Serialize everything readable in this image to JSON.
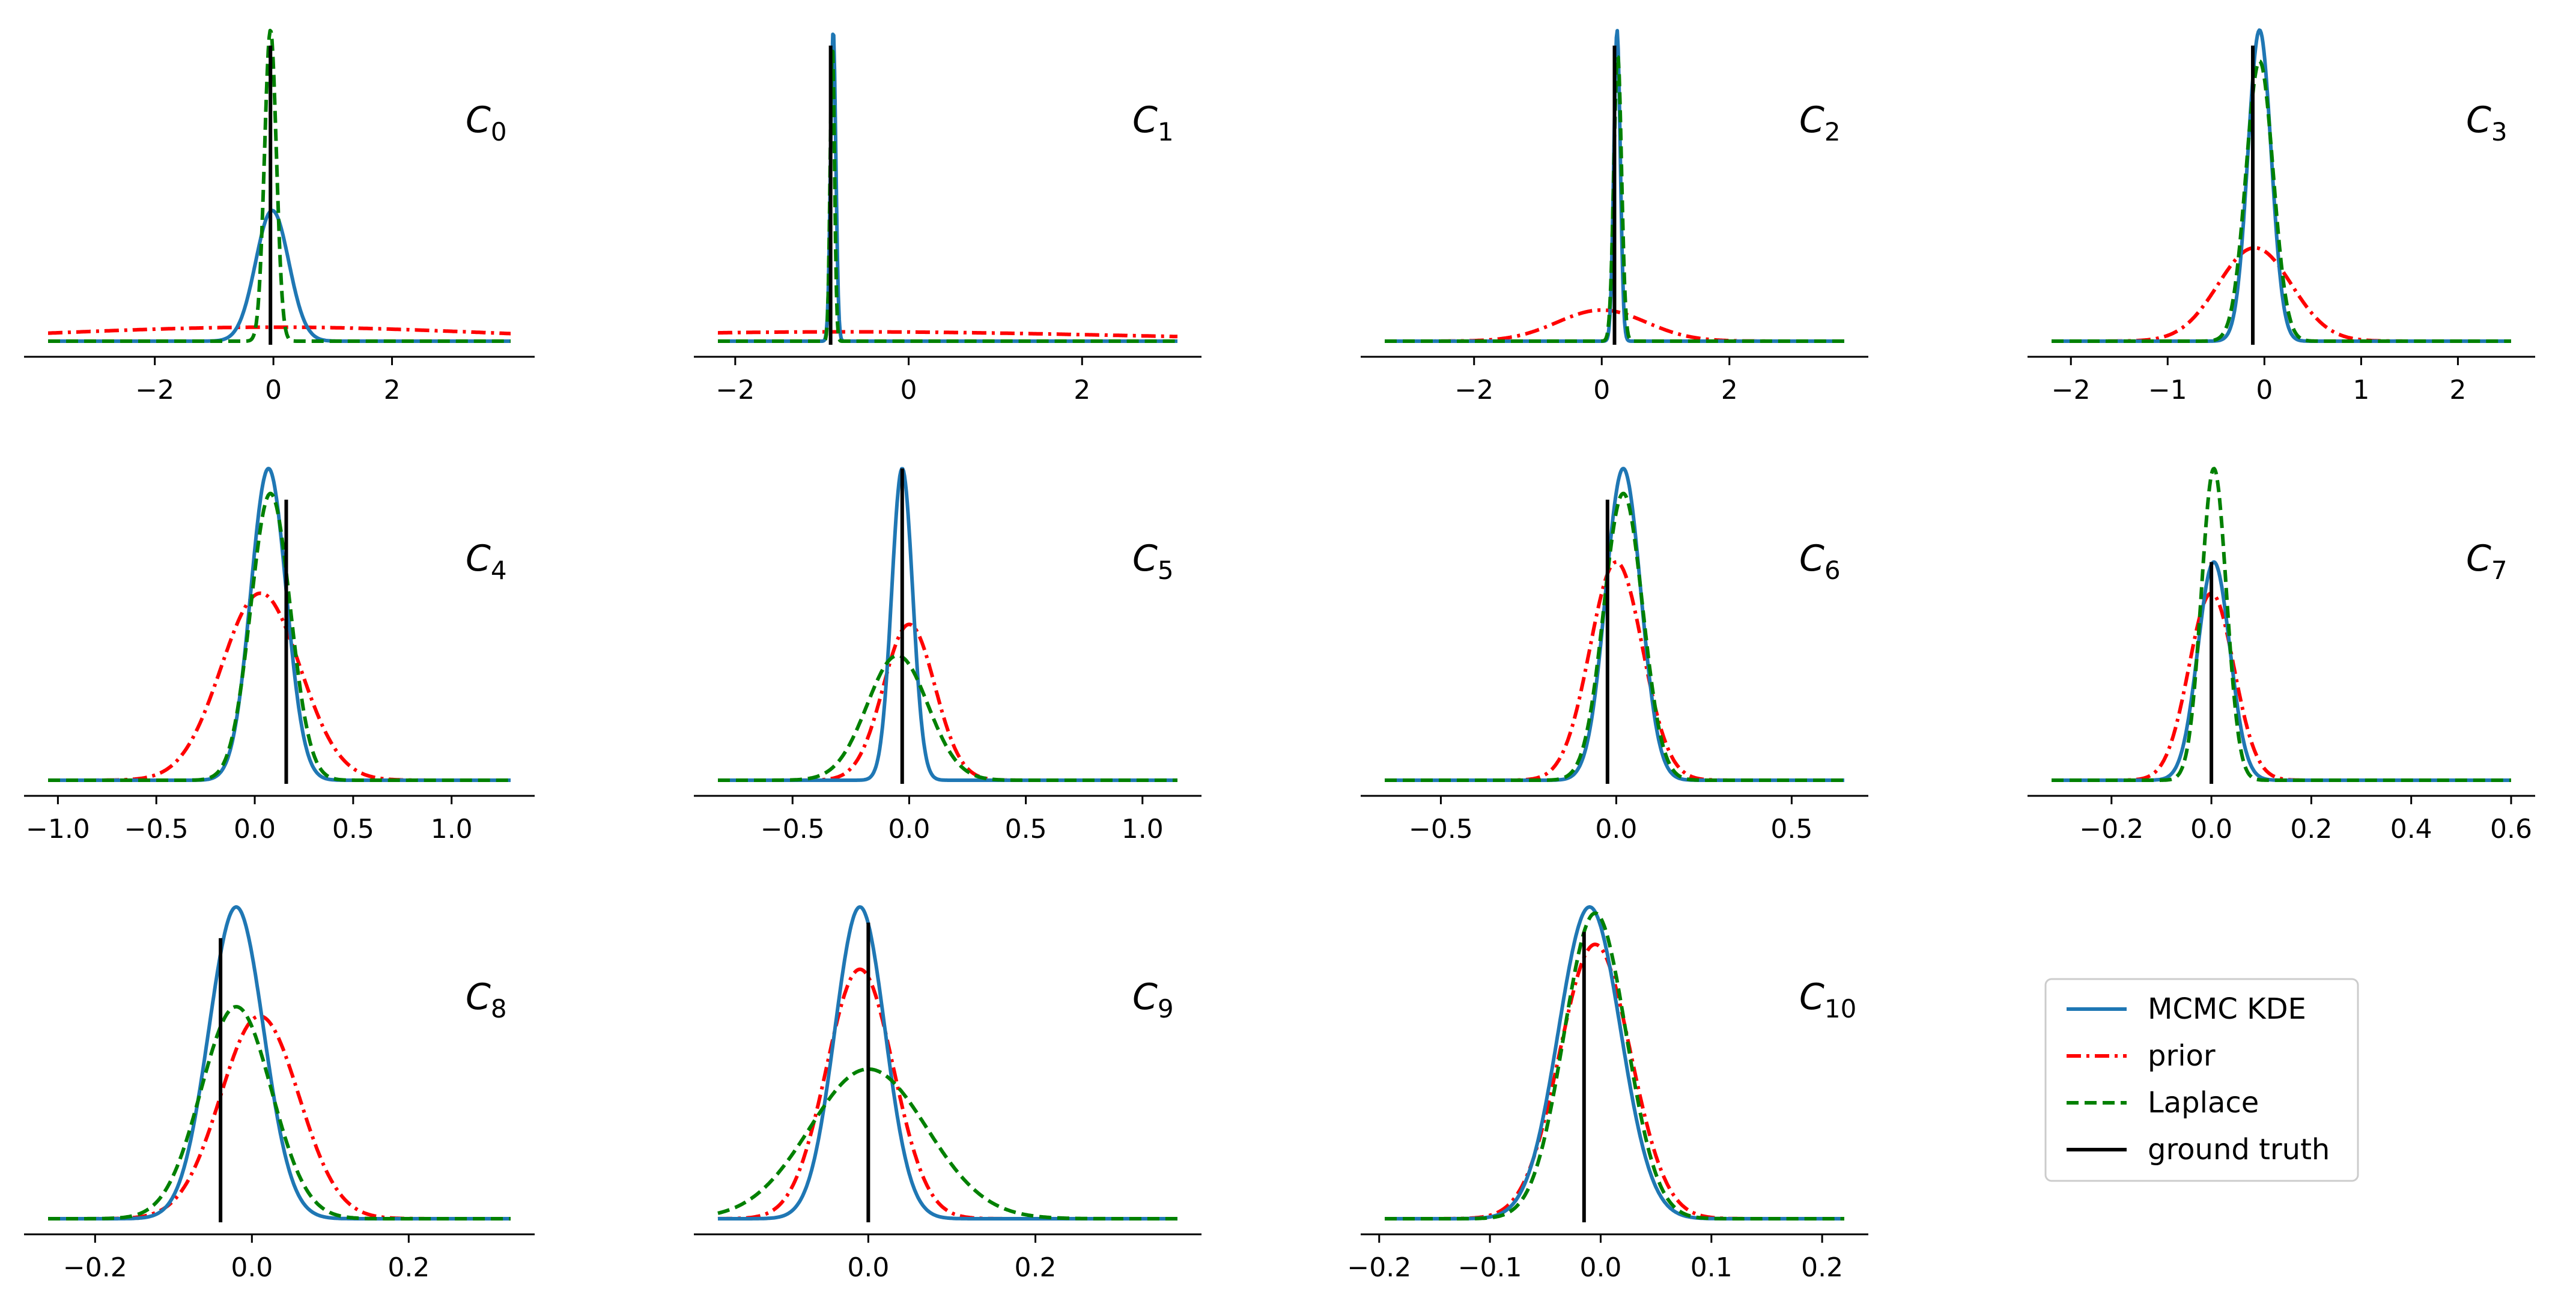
{
  "colors": {
    "mcmc": "#1f77b4",
    "prior": "#ff0000",
    "laplace": "#008000",
    "truth": "#000000",
    "axis": "#000000",
    "legend_border": "#cccccc"
  },
  "legend": {
    "position": "bottom-right",
    "entries": [
      {
        "key": "mcmc",
        "label": "MCMC KDE",
        "style": "solid"
      },
      {
        "key": "prior",
        "label": "prior",
        "style": "dashdot"
      },
      {
        "key": "laplace",
        "label": "Laplace",
        "style": "dashed"
      },
      {
        "key": "truth",
        "label": "ground truth",
        "style": "solid"
      }
    ]
  },
  "chart_data": [
    {
      "type": "line",
      "label_main": "C",
      "label_sub": "0",
      "xlim": [
        -3.8,
        4.0
      ],
      "ticks": [
        -2,
        0,
        2
      ],
      "tick_labels": [
        "−2",
        "0",
        "2"
      ],
      "truth": -0.05,
      "truth_height": 0.95,
      "series": [
        {
          "key": "mcmc",
          "mu": -0.02,
          "sigma": 0.28,
          "peak": 0.42
        },
        {
          "key": "prior",
          "mu": 0.0,
          "sigma": 3.6,
          "peak": 0.045
        },
        {
          "key": "laplace",
          "mu": -0.05,
          "sigma": 0.1,
          "peak": 1.0
        }
      ]
    },
    {
      "type": "line",
      "label_main": "C",
      "label_sub": "1",
      "xlim": [
        -2.2,
        3.1
      ],
      "ticks": [
        -2,
        0,
        2
      ],
      "tick_labels": [
        "−2",
        "0",
        "2"
      ],
      "truth": -0.9,
      "truth_height": 0.95,
      "series": [
        {
          "key": "mcmc",
          "mu": -0.87,
          "sigma": 0.03,
          "peak": 1.0
        },
        {
          "key": "prior",
          "mu": -0.7,
          "sigma": 3.2,
          "peak": 0.03
        },
        {
          "key": "laplace",
          "mu": -0.88,
          "sigma": 0.025,
          "peak": 0.95
        }
      ]
    },
    {
      "type": "line",
      "label_main": "C",
      "label_sub": "2",
      "xlim": [
        -3.4,
        3.8
      ],
      "ticks": [
        -2,
        0,
        2
      ],
      "tick_labels": [
        "−2",
        "0",
        "2"
      ],
      "truth": 0.2,
      "truth_height": 0.95,
      "series": [
        {
          "key": "mcmc",
          "mu": 0.24,
          "sigma": 0.05,
          "peak": 1.0
        },
        {
          "key": "prior",
          "mu": 0.0,
          "sigma": 0.7,
          "peak": 0.1
        },
        {
          "key": "laplace",
          "mu": 0.25,
          "sigma": 0.06,
          "peak": 0.92
        }
      ]
    },
    {
      "type": "line",
      "label_main": "C",
      "label_sub": "3",
      "xlim": [
        -2.2,
        2.55
      ],
      "ticks": [
        -2,
        -1,
        0,
        1,
        2
      ],
      "tick_labels": [
        "−2",
        "−1",
        "0",
        "1",
        "2"
      ],
      "truth": -0.12,
      "truth_height": 0.95,
      "series": [
        {
          "key": "mcmc",
          "mu": -0.05,
          "sigma": 0.12,
          "peak": 1.0
        },
        {
          "key": "prior",
          "mu": -0.1,
          "sigma": 0.38,
          "peak": 0.3
        },
        {
          "key": "laplace",
          "mu": -0.05,
          "sigma": 0.14,
          "peak": 0.9
        }
      ]
    },
    {
      "type": "line",
      "label_main": "C",
      "label_sub": "4",
      "xlim": [
        -1.05,
        1.3
      ],
      "ticks": [
        -1.0,
        -0.5,
        0.0,
        0.5,
        1.0
      ],
      "tick_labels": [
        "−1.0",
        "−0.5",
        "0.0",
        "0.5",
        "1.0"
      ],
      "truth": 0.16,
      "truth_height": 0.9,
      "series": [
        {
          "key": "mcmc",
          "mu": 0.07,
          "sigma": 0.09,
          "peak": 1.0
        },
        {
          "key": "prior",
          "mu": 0.03,
          "sigma": 0.2,
          "peak": 0.6
        },
        {
          "key": "laplace",
          "mu": 0.08,
          "sigma": 0.1,
          "peak": 0.92
        }
      ]
    },
    {
      "type": "line",
      "label_main": "C",
      "label_sub": "5",
      "xlim": [
        -0.82,
        1.15
      ],
      "ticks": [
        -0.5,
        0.0,
        0.5,
        1.0
      ],
      "tick_labels": [
        "−0.5",
        "0.0",
        "0.5",
        "1.0"
      ],
      "truth": -0.03,
      "truth_height": 1.0,
      "series": [
        {
          "key": "mcmc",
          "mu": -0.03,
          "sigma": 0.045,
          "peak": 1.0
        },
        {
          "key": "prior",
          "mu": 0.0,
          "sigma": 0.11,
          "peak": 0.5
        },
        {
          "key": "laplace",
          "mu": -0.05,
          "sigma": 0.13,
          "peak": 0.4
        }
      ]
    },
    {
      "type": "line",
      "label_main": "C",
      "label_sub": "6",
      "xlim": [
        -0.66,
        0.65
      ],
      "ticks": [
        -0.5,
        0.0,
        0.5
      ],
      "tick_labels": [
        "−0.5",
        "0.0",
        "0.5"
      ],
      "truth": -0.025,
      "truth_height": 0.9,
      "series": [
        {
          "key": "mcmc",
          "mu": 0.02,
          "sigma": 0.05,
          "peak": 1.0
        },
        {
          "key": "prior",
          "mu": 0.0,
          "sigma": 0.075,
          "peak": 0.7
        },
        {
          "key": "laplace",
          "mu": 0.02,
          "sigma": 0.055,
          "peak": 0.92
        }
      ]
    },
    {
      "type": "line",
      "label_main": "C",
      "label_sub": "7",
      "xlim": [
        -0.32,
        0.6
      ],
      "ticks": [
        -0.2,
        0.0,
        0.2,
        0.4,
        0.6
      ],
      "tick_labels": [
        "−0.2",
        "0.0",
        "0.2",
        "0.4",
        "0.6"
      ],
      "truth": 0.0,
      "truth_height": 0.7,
      "series": [
        {
          "key": "mcmc",
          "mu": 0.005,
          "sigma": 0.032,
          "peak": 0.7
        },
        {
          "key": "prior",
          "mu": 0.0,
          "sigma": 0.045,
          "peak": 0.6
        },
        {
          "key": "laplace",
          "mu": 0.005,
          "sigma": 0.025,
          "peak": 1.0
        }
      ]
    },
    {
      "type": "line",
      "label_main": "C",
      "label_sub": "8",
      "xlim": [
        -0.26,
        0.33
      ],
      "ticks": [
        -0.2,
        0.0,
        0.2
      ],
      "tick_labels": [
        "−0.2",
        "0.0",
        "0.2"
      ],
      "truth": -0.04,
      "truth_height": 0.9,
      "series": [
        {
          "key": "mcmc",
          "mu": -0.02,
          "sigma": 0.035,
          "peak": 1.0
        },
        {
          "key": "prior",
          "mu": 0.01,
          "sigma": 0.05,
          "peak": 0.65
        },
        {
          "key": "laplace",
          "mu": -0.02,
          "sigma": 0.045,
          "peak": 0.68
        }
      ]
    },
    {
      "type": "line",
      "label_main": "C",
      "label_sub": "9",
      "xlim": [
        -0.18,
        0.37
      ],
      "ticks": [
        -0.0,
        0.2
      ],
      "tick_labels": [
        "0.0",
        "0.2"
      ],
      "truth": 0.0,
      "truth_height": 0.95,
      "series": [
        {
          "key": "mcmc",
          "mu": -0.01,
          "sigma": 0.03,
          "peak": 1.0
        },
        {
          "key": "prior",
          "mu": -0.01,
          "sigma": 0.04,
          "peak": 0.8
        },
        {
          "key": "laplace",
          "mu": 0.0,
          "sigma": 0.07,
          "peak": 0.48
        }
      ]
    },
    {
      "type": "line",
      "label_main": "C",
      "label_sub": "10",
      "xlim": [
        -0.195,
        0.22
      ],
      "ticks": [
        -0.2,
        -0.1,
        0.0,
        0.1,
        0.2
      ],
      "tick_labels": [
        "−0.2",
        "−0.1",
        "0.0",
        "0.1",
        "0.2"
      ],
      "truth": -0.015,
      "truth_height": 0.92,
      "series": [
        {
          "key": "mcmc",
          "mu": -0.01,
          "sigma": 0.028,
          "peak": 1.0
        },
        {
          "key": "prior",
          "mu": -0.005,
          "sigma": 0.032,
          "peak": 0.88
        },
        {
          "key": "laplace",
          "mu": -0.005,
          "sigma": 0.028,
          "peak": 0.98
        }
      ]
    }
  ]
}
